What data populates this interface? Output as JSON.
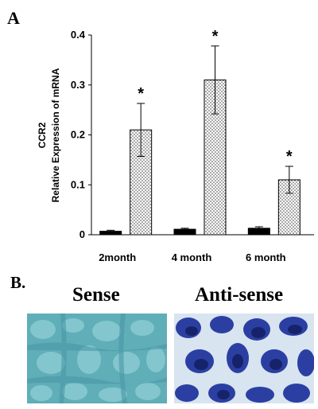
{
  "panel_a_label": "A",
  "panel_b_label": "B.",
  "panel_b": {
    "sense_title": "Sense",
    "antisense_title": "Anti-sense"
  },
  "chart_data": {
    "type": "bar",
    "categories": [
      "2month",
      "4 month",
      "6 month"
    ],
    "ylabel_line1": "CCR2",
    "ylabel_line2": "Relative Expression of mRNA",
    "xlabel": "",
    "ylim": [
      0,
      0.4
    ],
    "yticks": [
      "0",
      "0.1",
      "0.2",
      "0.3",
      "0.4"
    ],
    "grid": false,
    "legend": "none",
    "series": [
      {
        "values": [
          0.007,
          0.011,
          0.013
        ],
        "errors": [
          0.002,
          0.002,
          0.003
        ],
        "fill": "solid-black"
      },
      {
        "values": [
          0.21,
          0.31,
          0.11
        ],
        "errors": [
          0.053,
          0.068,
          0.027
        ],
        "fill": "stippled"
      }
    ],
    "significance_marker": "*",
    "significant": [
      false,
      false,
      false,
      true,
      true,
      true
    ]
  },
  "colors": {
    "bar_dark": "#000000",
    "bar_stipple_bg": "#ffffff",
    "bar_stipple_dot": "#333333",
    "sense_bg": "#5faeb8",
    "antisense_bg": "#2b3fa3"
  }
}
